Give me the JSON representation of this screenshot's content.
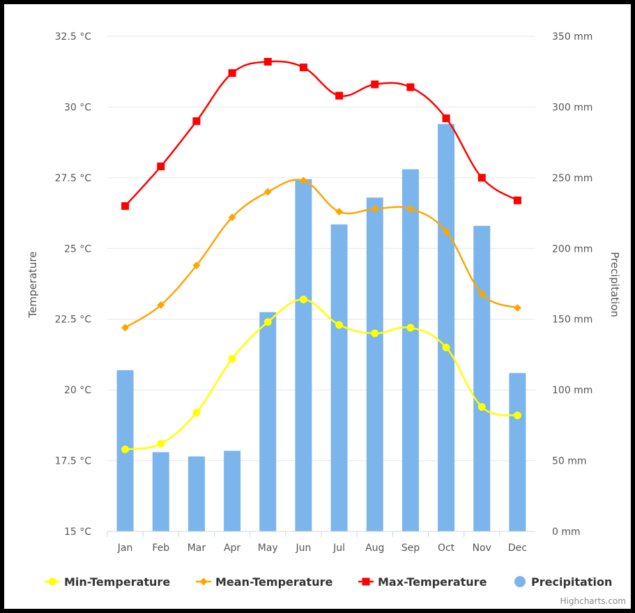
{
  "chart_data": {
    "type": "line",
    "categories": [
      "Jan",
      "Feb",
      "Mar",
      "Apr",
      "May",
      "Jun",
      "Jul",
      "Aug",
      "Sep",
      "Oct",
      "Nov",
      "Dec"
    ],
    "y_left": {
      "title": "Temperature",
      "min": 15,
      "max": 32.5,
      "ticks": [
        15,
        17.5,
        20,
        22.5,
        25,
        27.5,
        30,
        32.5
      ],
      "tick_labels": [
        "15 °C",
        "17.5 °C",
        "20 °C",
        "22.5 °C",
        "25 °C",
        "27.5 °C",
        "30 °C",
        "32.5 °C"
      ]
    },
    "y_right": {
      "title": "Precipitation",
      "min": 0,
      "max": 350,
      "ticks": [
        0,
        50,
        100,
        150,
        200,
        250,
        300,
        350
      ],
      "tick_labels": [
        "0 mm",
        "50 mm",
        "100 mm",
        "150 mm",
        "200 mm",
        "250 mm",
        "300 mm",
        "350 mm"
      ]
    },
    "series": [
      {
        "name": "Min-Temperature",
        "type": "spline",
        "axis": "left",
        "color": "#ffff00",
        "marker": "circle",
        "values": [
          17.9,
          18.1,
          19.2,
          21.1,
          22.4,
          23.2,
          22.3,
          22.0,
          22.2,
          21.5,
          19.4,
          19.1
        ]
      },
      {
        "name": "Mean-Temperature",
        "type": "spline",
        "axis": "left",
        "color": "#ffa500",
        "marker": "diamond",
        "values": [
          22.2,
          23.0,
          24.4,
          26.1,
          27.0,
          27.4,
          26.3,
          26.4,
          26.4,
          25.6,
          23.4,
          22.9
        ]
      },
      {
        "name": "Max-Temperature",
        "type": "spline",
        "axis": "left",
        "color": "#ff0000",
        "marker": "square",
        "values": [
          26.5,
          27.9,
          29.5,
          31.2,
          31.6,
          31.4,
          30.4,
          30.8,
          30.7,
          29.6,
          27.5,
          26.7
        ]
      },
      {
        "name": "Precipitation",
        "type": "column",
        "axis": "right",
        "color": "#7cb5ec",
        "marker": "circle",
        "values": [
          114,
          56,
          53,
          57,
          155,
          249,
          217,
          236,
          256,
          288,
          216,
          112
        ]
      }
    ],
    "grid": true,
    "legend_position": "bottom-center",
    "credit": "Highcharts.com"
  }
}
